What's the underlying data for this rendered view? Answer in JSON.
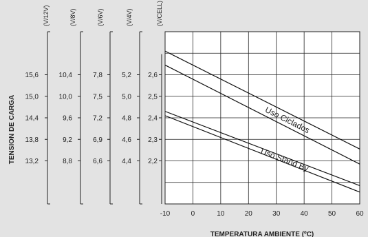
{
  "chart_data": {
    "type": "line",
    "xlabel": "TEMPERATURA AMBIENTE (ºC)",
    "ylabel": "TENSION DE CARGA",
    "xlim": [
      -10,
      60
    ],
    "ylim": [
      2.0,
      2.8
    ],
    "x_ticks": [
      "-10",
      "0",
      "10",
      "20",
      "30",
      "40",
      "50",
      "60"
    ],
    "grid": true,
    "scales": [
      {
        "header": "(V/12V)",
        "ticks": [
          "15,6",
          "15,0",
          "14,4",
          "13,8",
          "13,2"
        ]
      },
      {
        "header": "(V/8V)",
        "ticks": [
          "10,4",
          "10,0",
          "9,6",
          "9,2",
          "8,8"
        ]
      },
      {
        "header": "(V/6V)",
        "ticks": [
          "7,8",
          "7,5",
          "7,2",
          "6,9",
          "6,6"
        ]
      },
      {
        "header": "(V/4V)",
        "ticks": [
          "5,2",
          "5,0",
          "4,8",
          "4,6",
          "4,4"
        ]
      },
      {
        "header": "(V/CELL)",
        "ticks": [
          "2,6",
          "2,5",
          "2,4",
          "2,3",
          "2,2"
        ]
      }
    ],
    "scale_values": [
      2.6,
      2.5,
      2.4,
      2.3,
      2.2
    ],
    "series": [
      {
        "name": "Uso Ciclados",
        "lines": [
          {
            "x": [
              -10,
              60
            ],
            "y": [
              2.71,
              2.255
            ]
          },
          {
            "x": [
              -10,
              60
            ],
            "y": [
              2.645,
              2.185
            ]
          }
        ]
      },
      {
        "name": "Uso Stand By",
        "lines": [
          {
            "x": [
              -10,
              60
            ],
            "y": [
              2.43,
              2.085
            ]
          },
          {
            "x": [
              -10,
              60
            ],
            "y": [
              2.41,
              2.055
            ]
          }
        ]
      }
    ]
  }
}
